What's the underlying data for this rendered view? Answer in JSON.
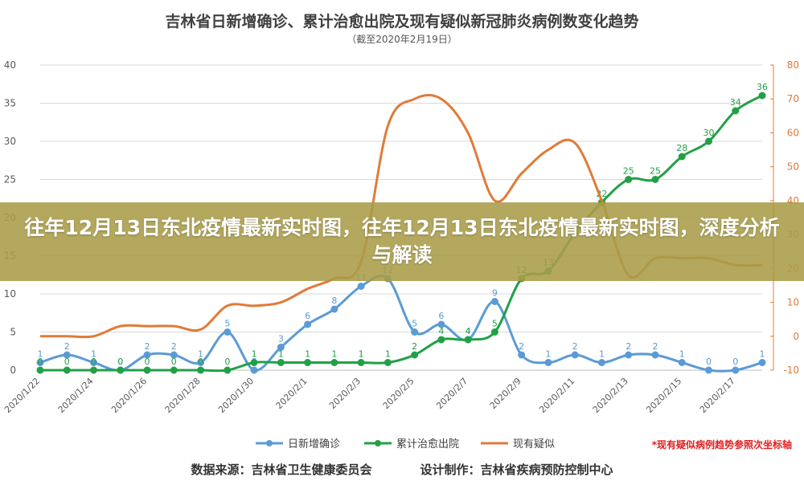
{
  "overlay": {
    "headline": "往年12月13日东北疫情最新实时图，往年12月13日东北疫情最新实时图，深度分析与解读"
  },
  "footer": {
    "source": "数据来源：吉林省卫生健康委员会",
    "design": "设计制作：吉林省疾病预防控制中心"
  },
  "chart_data": {
    "type": "line",
    "title": "吉林省日新增确诊、累计治愈出院及现有疑似新冠肺炎病例数变化趋势",
    "subtitle": "（截至2020年2月19日）",
    "note": "*现有疑似病例趋势参照次坐标轴",
    "x": [
      "2020/1/22",
      "2020/1/23",
      "2020/1/24",
      "2020/1/25",
      "2020/1/26",
      "2020/1/27",
      "2020/1/28",
      "2020/1/29",
      "2020/1/30",
      "2020/1/31",
      "2020/2/1",
      "2020/2/2",
      "2020/2/3",
      "2020/2/4",
      "2020/2/5",
      "2020/2/6",
      "2020/2/7",
      "2020/2/8",
      "2020/2/9",
      "2020/2/10",
      "2020/2/11",
      "2020/2/12",
      "2020/2/13",
      "2020/2/14",
      "2020/2/15",
      "2020/2/16",
      "2020/2/17",
      "2020/2/18"
    ],
    "x_tick_labels": [
      "2020/1/22",
      "2020/1/24",
      "2020/1/26",
      "2020/1/28",
      "2020/1/30",
      "2020/2/1",
      "2020/2/3",
      "2020/2/5",
      "2020/2/7",
      "2020/2/9",
      "2020/2/11",
      "2020/2/13",
      "2020/2/15",
      "2020/2/17"
    ],
    "ylim": [
      0,
      40
    ],
    "y_ticks": [
      0,
      5,
      10,
      15,
      20,
      25,
      30,
      35,
      40
    ],
    "y2lim": [
      -10,
      80
    ],
    "y2_ticks": [
      -10,
      0,
      10,
      20,
      30,
      40,
      50,
      60,
      70,
      80
    ],
    "grid": true,
    "legend_position": "bottom",
    "series": [
      {
        "name": "日新增确诊",
        "axis": "left",
        "color": "#5b9bd5",
        "labeled": true,
        "values": [
          1,
          2,
          1,
          0,
          2,
          2,
          1,
          5,
          0,
          3,
          6,
          8,
          11,
          12,
          5,
          6,
          4,
          9,
          2,
          1,
          2,
          1,
          2,
          2,
          1,
          0,
          0,
          1
        ]
      },
      {
        "name": "累计治愈出院",
        "axis": "left",
        "color": "#22a047",
        "labeled": true,
        "values": [
          0,
          0,
          0,
          0,
          0,
          0,
          0,
          0,
          1,
          1,
          1,
          1,
          1,
          1,
          2,
          4,
          4,
          5,
          12,
          13,
          18,
          22,
          25,
          25,
          28,
          30,
          34,
          36
        ]
      },
      {
        "name": "现有疑似",
        "axis": "right",
        "color": "#e07b39",
        "labeled": false,
        "values": [
          0,
          0,
          0,
          3,
          3,
          3,
          2,
          9,
          9,
          10,
          14,
          17,
          22,
          62,
          70,
          70,
          60,
          40,
          48,
          55,
          57,
          40,
          18,
          23,
          23,
          23,
          21,
          21
        ]
      }
    ]
  }
}
